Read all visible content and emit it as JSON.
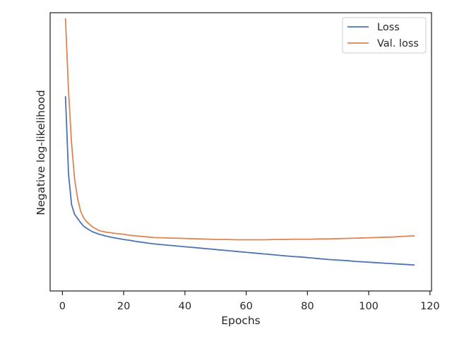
{
  "chart_data": {
    "type": "line",
    "title": "",
    "xlabel": "Epochs",
    "ylabel": "Negative log-likelihood",
    "xlim": [
      -4,
      120.5
    ],
    "xticks": [
      0,
      20,
      40,
      60,
      80,
      100,
      120
    ],
    "ylim": [
      0,
      1
    ],
    "yticks": [],
    "y_tick_labels_shown": false,
    "grid": false,
    "legend_position": "top-right",
    "series": [
      {
        "name": "Loss",
        "color": "#4c72b0",
        "x": [
          1,
          2,
          3,
          4,
          5,
          6,
          7,
          8,
          9,
          10,
          12,
          14,
          16,
          18,
          20,
          22,
          24,
          26,
          28,
          30,
          33,
          36,
          39,
          42,
          45,
          48,
          51,
          54,
          57,
          60,
          63,
          66,
          69,
          72,
          75,
          78,
          81,
          84,
          87,
          90,
          93,
          96,
          99,
          102,
          105,
          108,
          111,
          114,
          115
        ],
        "y": [
          0.7,
          0.42,
          0.31,
          0.275,
          0.26,
          0.245,
          0.232,
          0.225,
          0.218,
          0.212,
          0.204,
          0.198,
          0.193,
          0.189,
          0.185,
          0.182,
          0.178,
          0.175,
          0.172,
          0.169,
          0.166,
          0.163,
          0.16,
          0.157,
          0.154,
          0.151,
          0.148,
          0.145,
          0.142,
          0.139,
          0.136,
          0.133,
          0.13,
          0.127,
          0.124,
          0.122,
          0.119,
          0.116,
          0.113,
          0.111,
          0.109,
          0.106,
          0.104,
          0.102,
          0.1,
          0.098,
          0.096,
          0.094,
          0.093
        ]
      },
      {
        "name": "Val. loss",
        "color": "#dd8452",
        "x": [
          1,
          2,
          3,
          4,
          5,
          6,
          7,
          8,
          9,
          10,
          12,
          14,
          16,
          18,
          20,
          22,
          24,
          26,
          28,
          30,
          33,
          36,
          39,
          42,
          45,
          48,
          51,
          54,
          57,
          60,
          63,
          66,
          69,
          72,
          75,
          78,
          81,
          84,
          87,
          90,
          93,
          96,
          99,
          102,
          105,
          108,
          111,
          114,
          115
        ],
        "y": [
          0.98,
          0.72,
          0.53,
          0.4,
          0.33,
          0.285,
          0.262,
          0.248,
          0.238,
          0.229,
          0.217,
          0.212,
          0.209,
          0.206,
          0.204,
          0.2,
          0.198,
          0.196,
          0.194,
          0.192,
          0.191,
          0.19,
          0.189,
          0.188,
          0.187,
          0.186,
          0.185,
          0.185,
          0.184,
          0.184,
          0.184,
          0.184,
          0.185,
          0.185,
          0.186,
          0.186,
          0.186,
          0.187,
          0.187,
          0.188,
          0.189,
          0.19,
          0.191,
          0.192,
          0.193,
          0.194,
          0.196,
          0.198,
          0.198
        ]
      }
    ]
  }
}
